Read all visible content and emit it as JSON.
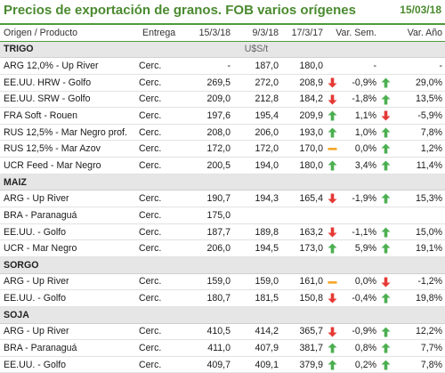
{
  "header": {
    "title": "Precios de exportación de granos. FOB varios orígenes",
    "date": "15/03/18"
  },
  "columns": [
    "Origen / Producto",
    "Entrega",
    "15/3/18",
    "9/3/18",
    "17/3/17",
    "Var. Sem.",
    "Var. Año"
  ],
  "unit": "U$S/t",
  "colors": {
    "accent": "#4a8a2f",
    "up": "#4caf50",
    "down": "#e53935",
    "flat": "#f5a623"
  },
  "sections": [
    {
      "name": "TRIGO",
      "show_unit": true,
      "rows": [
        {
          "product": "ARG 12,0% - Up River",
          "entrega": "Cerc.",
          "c1": "-",
          "c2": "187,0",
          "c3": "180,0",
          "ind1": "",
          "vsem": "-",
          "ind2": "",
          "vanio": "-"
        },
        {
          "product": "EE.UU. HRW - Golfo",
          "entrega": "Cerc.",
          "c1": "269,5",
          "c2": "272,0",
          "c3": "208,9",
          "ind1": "down",
          "vsem": "-0,9%",
          "ind2": "up",
          "vanio": "29,0%"
        },
        {
          "product": "EE.UU. SRW - Golfo",
          "entrega": "Cerc.",
          "c1": "209,0",
          "c2": "212,8",
          "c3": "184,2",
          "ind1": "down",
          "vsem": "-1,8%",
          "ind2": "up",
          "vanio": "13,5%"
        },
        {
          "product": "FRA Soft - Rouen",
          "entrega": "Cerc.",
          "c1": "197,6",
          "c2": "195,4",
          "c3": "209,9",
          "ind1": "up",
          "vsem": "1,1%",
          "ind2": "down",
          "vanio": "-5,9%"
        },
        {
          "product": "RUS 12,5% - Mar Negro prof.",
          "entrega": "Cerc.",
          "c1": "208,0",
          "c2": "206,0",
          "c3": "193,0",
          "ind1": "up",
          "vsem": "1,0%",
          "ind2": "up",
          "vanio": "7,8%"
        },
        {
          "product": "RUS 12,5% - Mar Azov",
          "entrega": "Cerc.",
          "c1": "172,0",
          "c2": "172,0",
          "c3": "170,0",
          "ind1": "flat",
          "vsem": "0,0%",
          "ind2": "up",
          "vanio": "1,2%"
        },
        {
          "product": "UCR Feed - Mar Negro",
          "entrega": "Cerc.",
          "c1": "200,5",
          "c2": "194,0",
          "c3": "180,0",
          "ind1": "up",
          "vsem": "3,4%",
          "ind2": "up",
          "vanio": "11,4%"
        }
      ]
    },
    {
      "name": "MAIZ",
      "show_unit": false,
      "rows": [
        {
          "product": "ARG - Up River",
          "entrega": "Cerc.",
          "c1": "190,7",
          "c2": "194,3",
          "c3": "165,4",
          "ind1": "down",
          "vsem": "-1,9%",
          "ind2": "up",
          "vanio": "15,3%"
        },
        {
          "product": "BRA - Paranaguá",
          "entrega": "Cerc.",
          "c1": "175,0",
          "c2": "",
          "c3": "",
          "ind1": "",
          "vsem": "",
          "ind2": "",
          "vanio": ""
        },
        {
          "product": "EE.UU. - Golfo",
          "entrega": "Cerc.",
          "c1": "187,7",
          "c2": "189,8",
          "c3": "163,2",
          "ind1": "down",
          "vsem": "-1,1%",
          "ind2": "up",
          "vanio": "15,0%"
        },
        {
          "product": "UCR - Mar Negro",
          "entrega": "Cerc.",
          "c1": "206,0",
          "c2": "194,5",
          "c3": "173,0",
          "ind1": "up",
          "vsem": "5,9%",
          "ind2": "up",
          "vanio": "19,1%"
        }
      ]
    },
    {
      "name": "SORGO",
      "show_unit": false,
      "rows": [
        {
          "product": "ARG - Up River",
          "entrega": "Cerc.",
          "c1": "159,0",
          "c2": "159,0",
          "c3": "161,0",
          "ind1": "flat",
          "vsem": "0,0%",
          "ind2": "down",
          "vanio": "-1,2%"
        },
        {
          "product": "EE.UU. - Golfo",
          "entrega": "Cerc.",
          "c1": "180,7",
          "c2": "181,5",
          "c3": "150,8",
          "ind1": "down",
          "vsem": "-0,4%",
          "ind2": "up",
          "vanio": "19,8%"
        }
      ]
    },
    {
      "name": "SOJA",
      "show_unit": false,
      "rows": [
        {
          "product": "ARG - Up River",
          "entrega": "Cerc.",
          "c1": "410,5",
          "c2": "414,2",
          "c3": "365,7",
          "ind1": "down",
          "vsem": "-0,9%",
          "ind2": "up",
          "vanio": "12,2%"
        },
        {
          "product": "BRA - Paranaguá",
          "entrega": "Cerc.",
          "c1": "411,0",
          "c2": "407,9",
          "c3": "381,7",
          "ind1": "up",
          "vsem": "0,8%",
          "ind2": "up",
          "vanio": "7,7%"
        },
        {
          "product": "EE.UU. - Golfo",
          "entrega": "Cerc.",
          "c1": "409,7",
          "c2": "409,1",
          "c3": "379,9",
          "ind1": "up",
          "vsem": "0,2%",
          "ind2": "up",
          "vanio": "7,8%"
        }
      ]
    }
  ]
}
